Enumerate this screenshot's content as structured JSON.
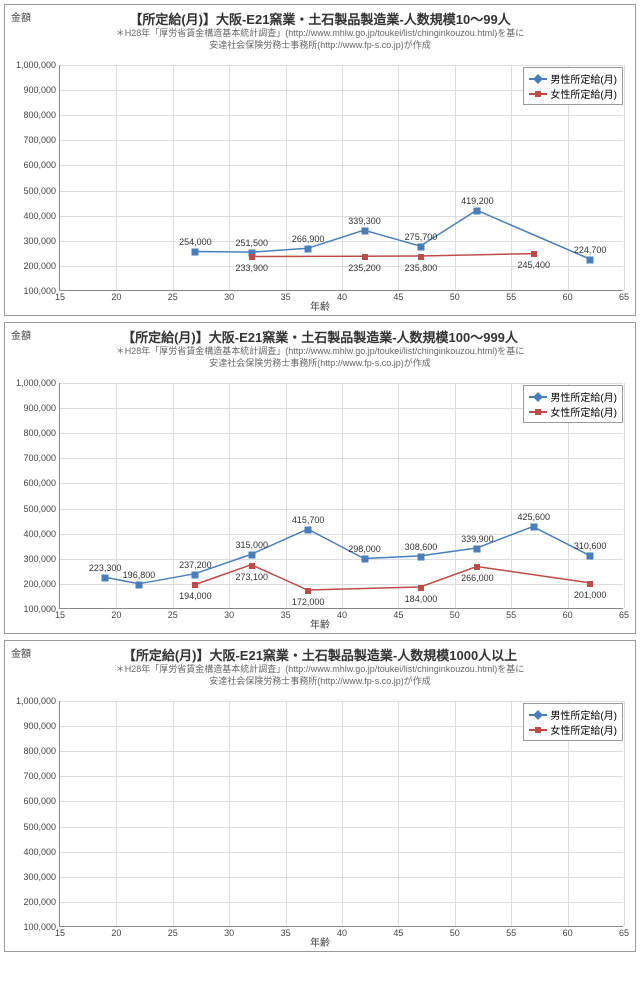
{
  "common": {
    "ylabel": "金額",
    "xlabel": "年齢",
    "subtitle_line1": "＊H28年「厚労省賃金構造基本統計調査」(http://www.mhlw.go.jp/toukei/list/chinginkouzou.html)を基に",
    "subtitle_line2": "安達社会保険労務士事務所(http://www.fp-s.co.jp)が作成",
    "legend_male": "男性所定給(月)",
    "legend_female": "女性所定給(月)",
    "color_male": "#4a7ebb",
    "color_female": "#be4b48",
    "grid_color": "#dddddd",
    "background_color": "#ffffff",
    "ylim": [
      100000,
      1000000
    ],
    "ytick_step": 100000,
    "xlim": [
      15,
      65
    ],
    "xtick_step": 5
  },
  "charts": [
    {
      "title": "【所定給(月)】大阪-E21窯業・土石製品製造業-人数規模10～99人",
      "male": {
        "x": [
          27,
          32,
          37,
          42,
          47,
          52,
          62
        ],
        "y": [
          254000,
          251500,
          266900,
          339300,
          275700,
          419200,
          224700
        ],
        "labels": [
          "254,000",
          "251,500",
          "266,900",
          "339,300",
          "275,700",
          "419,200",
          "224,700"
        ],
        "label_pos": [
          "above",
          "above",
          "above",
          "above",
          "above",
          "above",
          "above"
        ]
      },
      "female": {
        "x": [
          32,
          42,
          47,
          57
        ],
        "y": [
          233900,
          235200,
          235800,
          245400
        ],
        "labels": [
          "233,900",
          "235,200",
          "235,800",
          "245,400"
        ],
        "label_pos": [
          "below",
          "below",
          "below",
          "below"
        ]
      }
    },
    {
      "title": "【所定給(月)】大阪-E21窯業・土石製品製造業-人数規模100～999人",
      "male": {
        "x": [
          19,
          22,
          27,
          32,
          37,
          42,
          47,
          52,
          57,
          62
        ],
        "y": [
          223300,
          196800,
          237200,
          315000,
          415700,
          298000,
          308600,
          339900,
          425600,
          310600
        ],
        "labels": [
          "223,300",
          "196,800",
          "237,200",
          "315,000",
          "415,700",
          "298,000",
          "308,600",
          "339,900",
          "425,600",
          "310,600"
        ],
        "label_pos": [
          "above",
          "above",
          "above",
          "above",
          "above",
          "above",
          "above",
          "above",
          "above",
          "above"
        ]
      },
      "female": {
        "x": [
          27,
          32,
          37,
          47,
          52,
          62
        ],
        "y": [
          194000,
          273100,
          172000,
          184000,
          266000,
          201000
        ],
        "labels": [
          "194,000",
          "273,100",
          "172,000",
          "184,000",
          "266,000",
          "201,000"
        ],
        "label_pos": [
          "below",
          "below",
          "below",
          "below",
          "below",
          "below"
        ]
      }
    },
    {
      "title": "【所定給(月)】大阪-E21窯業・土石製品製造業-人数規模1000人以上",
      "male": {
        "x": [],
        "y": [],
        "labels": [],
        "label_pos": []
      },
      "female": {
        "x": [],
        "y": [],
        "labels": [],
        "label_pos": []
      }
    }
  ]
}
